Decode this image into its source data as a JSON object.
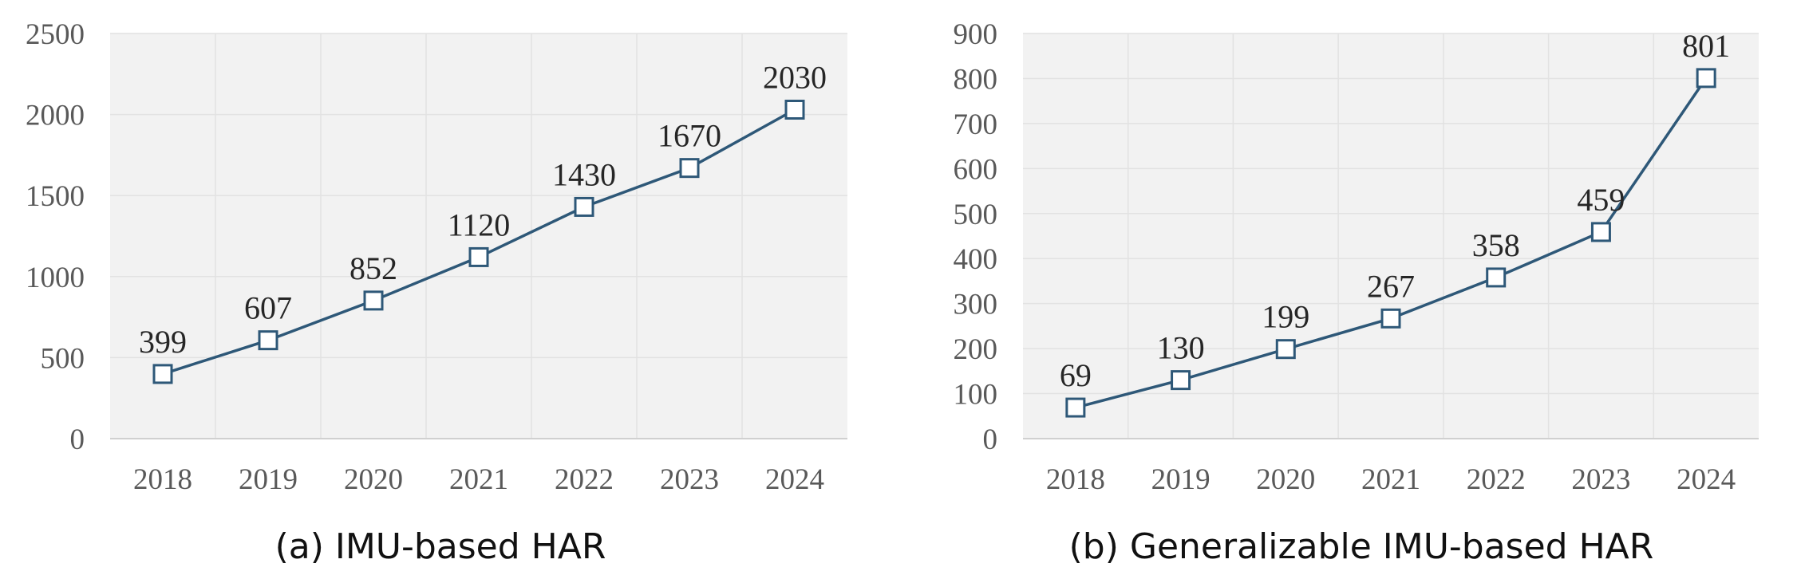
{
  "chart_data": [
    {
      "type": "line",
      "title": "",
      "caption": "(a) IMU-based HAR",
      "xlabel": "",
      "ylabel": "",
      "categories": [
        "2018",
        "2019",
        "2020",
        "2021",
        "2022",
        "2023",
        "2024"
      ],
      "series": [
        {
          "values": [
            399,
            607,
            852,
            1120,
            1430,
            1670,
            2030
          ]
        }
      ],
      "ylim": [
        0,
        2500
      ],
      "yticks": [
        0,
        500,
        1000,
        1500,
        2000,
        2500
      ],
      "grid": true,
      "marker": "hollow-square",
      "colors": {
        "line": "#2e5878",
        "plot_background": "#f2f2f2"
      }
    },
    {
      "type": "line",
      "title": "",
      "caption": "(b) Generalizable IMU-based HAR",
      "xlabel": "",
      "ylabel": "",
      "categories": [
        "2018",
        "2019",
        "2020",
        "2021",
        "2022",
        "2023",
        "2024"
      ],
      "series": [
        {
          "values": [
            69,
            130,
            199,
            267,
            358,
            459,
            801
          ]
        }
      ],
      "ylim": [
        0,
        900
      ],
      "yticks": [
        0,
        100,
        200,
        300,
        400,
        500,
        600,
        700,
        800,
        900
      ],
      "grid": true,
      "marker": "hollow-square",
      "colors": {
        "line": "#2e5878",
        "plot_background": "#f2f2f2"
      }
    }
  ]
}
